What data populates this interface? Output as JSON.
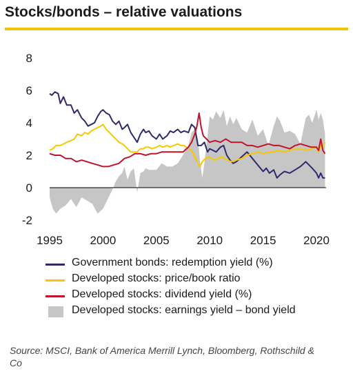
{
  "title": "Stocks/bonds – relative valuations",
  "source": "Source: MSCI, Bank of America Merrill Lynch, Bloomberg, Rothschild & Co",
  "colors": {
    "accent_rule": "#f5c400",
    "gov_bonds": "#2b2a6b",
    "price_book": "#f7c700",
    "dividend_yield": "#c0122c",
    "earnings_gap": "#c6c6c6",
    "zero_line": "#000000"
  },
  "chart_data": {
    "type": "line",
    "title": "Stocks/bonds – relative valuations",
    "xlabel": "",
    "ylabel": "",
    "xlim": [
      1995,
      2020.9
    ],
    "ylim": [
      -2,
      8
    ],
    "x_ticks": [
      "1995",
      "2000",
      "2005",
      "2010",
      "2015",
      "2020"
    ],
    "x_tick_values": [
      1995,
      2000,
      2005,
      2010,
      2015,
      2020
    ],
    "y_ticks": [
      "-2",
      "0",
      "2",
      "4",
      "6",
      "8"
    ],
    "y_tick_values": [
      -2,
      0,
      2,
      4,
      6,
      8
    ],
    "grid": false,
    "legend_position": "bottom",
    "series": [
      {
        "name": "Developed stocks: earnings yield – bond yield",
        "kind": "area",
        "color": "#c6c6c6",
        "x": [
          1995.0,
          1995.3,
          1995.6,
          1996.0,
          1996.5,
          1997.0,
          1997.5,
          1998.0,
          1998.5,
          1999.0,
          1999.5,
          2000.0,
          2000.3,
          2000.6,
          2000.9,
          2001.2,
          2001.5,
          2001.8,
          2002.0,
          2002.3,
          2002.6,
          2002.9,
          2003.2,
          2003.5,
          2003.8,
          2004.0,
          2004.3,
          2004.7,
          2005.0,
          2005.5,
          2006.0,
          2006.5,
          2007.0,
          2007.5,
          2008.0,
          2008.3,
          2008.6,
          2008.9,
          2009.1,
          2009.3,
          2009.5,
          2009.8,
          2010.0,
          2010.3,
          2010.6,
          2011.0,
          2011.3,
          2011.6,
          2011.9,
          2012.2,
          2012.5,
          2013.0,
          2013.5,
          2014.0,
          2014.5,
          2015.0,
          2015.5,
          2016.0,
          2016.3,
          2016.6,
          2017.0,
          2017.5,
          2018.0,
          2018.5,
          2019.0,
          2019.3,
          2019.6,
          2020.0,
          2020.2,
          2020.4,
          2020.6,
          2020.8
        ],
        "values": [
          -0.6,
          -1.3,
          -1.6,
          -1.3,
          -1.1,
          -0.7,
          -1.2,
          -0.6,
          -0.8,
          -1.0,
          -1.6,
          -1.3,
          -0.9,
          -0.5,
          -0.1,
          0.4,
          0.7,
          0.9,
          1.3,
          0.5,
          1.0,
          1.2,
          -0.3,
          0.9,
          1.0,
          1.2,
          1.1,
          1.1,
          1.1,
          1.5,
          1.3,
          1.3,
          1.5,
          2.0,
          2.6,
          3.4,
          3.6,
          3.0,
          1.6,
          0.6,
          1.5,
          3.2,
          4.4,
          4.2,
          4.7,
          4.3,
          4.8,
          3.8,
          4.4,
          3.9,
          4.3,
          3.6,
          3.4,
          4.2,
          3.2,
          3.6,
          2.6,
          3.8,
          4.4,
          4.1,
          3.4,
          3.5,
          3.3,
          2.7,
          4.3,
          4.5,
          4.0,
          4.8,
          4.2,
          4.6,
          4.2,
          3.3
        ]
      },
      {
        "name": "Government bonds: redemption yield (%)",
        "kind": "line",
        "color": "#2b2a6b",
        "x": [
          1995.0,
          1995.2,
          1995.5,
          1995.8,
          1996.0,
          1996.3,
          1996.6,
          1997.0,
          1997.3,
          1997.6,
          1998.0,
          1998.3,
          1998.6,
          1998.9,
          1999.2,
          1999.5,
          1999.8,
          2000.0,
          2000.3,
          2000.6,
          2000.9,
          2001.2,
          2001.5,
          2001.8,
          2002.0,
          2002.3,
          2002.6,
          2002.9,
          2003.2,
          2003.5,
          2003.8,
          2004.0,
          2004.3,
          2004.6,
          2005.0,
          2005.3,
          2005.6,
          2006.0,
          2006.3,
          2006.6,
          2007.0,
          2007.3,
          2007.6,
          2008.0,
          2008.3,
          2008.6,
          2008.9,
          2009.2,
          2009.5,
          2009.8,
          2010.0,
          2010.3,
          2010.6,
          2011.0,
          2011.3,
          2011.6,
          2011.9,
          2012.2,
          2012.5,
          2013.0,
          2013.5,
          2014.0,
          2014.5,
          2015.0,
          2015.3,
          2015.6,
          2016.0,
          2016.3,
          2016.6,
          2017.0,
          2017.5,
          2018.0,
          2018.5,
          2019.0,
          2019.3,
          2019.6,
          2020.0,
          2020.2,
          2020.4,
          2020.6,
          2020.8
        ],
        "values": [
          5.8,
          5.7,
          5.9,
          5.8,
          5.2,
          5.6,
          5.1,
          5.1,
          4.6,
          4.8,
          4.3,
          4.1,
          3.8,
          3.9,
          4.0,
          4.4,
          4.7,
          4.8,
          4.6,
          4.5,
          4.1,
          3.9,
          4.1,
          3.6,
          3.7,
          3.9,
          3.4,
          3.1,
          2.8,
          3.3,
          3.6,
          3.4,
          3.5,
          3.2,
          3.0,
          3.3,
          3.0,
          3.2,
          3.5,
          3.4,
          3.6,
          3.4,
          3.5,
          3.4,
          3.9,
          3.7,
          2.6,
          2.6,
          2.8,
          2.2,
          2.4,
          2.3,
          2.2,
          2.5,
          2.6,
          2.0,
          1.7,
          1.5,
          1.6,
          1.9,
          2.2,
          1.8,
          1.4,
          1.0,
          1.2,
          0.9,
          1.1,
          0.6,
          0.8,
          1.0,
          0.9,
          1.1,
          1.3,
          1.6,
          1.4,
          1.2,
          0.9,
          0.6,
          0.9,
          0.6,
          0.6
        ]
      },
      {
        "name": "Developed stocks: price/book ratio",
        "kind": "line",
        "color": "#f7c700",
        "x": [
          1995.0,
          1995.3,
          1995.6,
          1996.0,
          1996.3,
          1996.6,
          1997.0,
          1997.3,
          1997.6,
          1998.0,
          1998.3,
          1998.6,
          1998.9,
          1999.2,
          1999.5,
          1999.8,
          2000.0,
          2000.3,
          2000.6,
          2000.9,
          2001.2,
          2001.5,
          2001.8,
          2002.0,
          2002.3,
          2002.6,
          2002.9,
          2003.2,
          2003.5,
          2003.8,
          2004.0,
          2004.3,
          2004.6,
          2005.0,
          2005.3,
          2005.6,
          2006.0,
          2006.3,
          2006.6,
          2007.0,
          2007.3,
          2007.6,
          2008.0,
          2008.3,
          2008.6,
          2008.9,
          2009.1,
          2009.3,
          2009.6,
          2009.9,
          2010.2,
          2010.5,
          2010.8,
          2011.1,
          2011.4,
          2011.7,
          2012.0,
          2012.5,
          2013.0,
          2013.5,
          2014.0,
          2014.5,
          2015.0,
          2015.5,
          2016.0,
          2016.5,
          2017.0,
          2017.5,
          2018.0,
          2018.5,
          2019.0,
          2019.5,
          2020.0,
          2020.2,
          2020.4,
          2020.6,
          2020.8
        ],
        "values": [
          2.3,
          2.4,
          2.6,
          2.6,
          2.7,
          2.8,
          2.9,
          3.0,
          3.3,
          3.2,
          3.4,
          3.3,
          3.5,
          3.6,
          3.7,
          3.8,
          3.9,
          3.6,
          3.4,
          3.2,
          3.0,
          2.8,
          2.7,
          2.6,
          2.4,
          2.2,
          2.2,
          2.2,
          2.4,
          2.4,
          2.5,
          2.5,
          2.4,
          2.5,
          2.6,
          2.5,
          2.6,
          2.5,
          2.6,
          2.7,
          2.6,
          2.6,
          2.4,
          2.3,
          1.9,
          1.5,
          1.3,
          1.6,
          1.8,
          1.9,
          1.8,
          1.7,
          1.8,
          1.9,
          1.8,
          1.7,
          1.6,
          1.7,
          1.8,
          2.0,
          2.1,
          2.2,
          2.1,
          2.2,
          2.2,
          2.3,
          2.2,
          2.3,
          2.4,
          2.4,
          2.3,
          2.4,
          2.5,
          2.2,
          2.6,
          2.5,
          2.8
        ]
      },
      {
        "name": "Developed stocks: dividend yield (%)",
        "kind": "line",
        "color": "#c0122c",
        "x": [
          1995.0,
          1995.5,
          1996.0,
          1996.5,
          1997.0,
          1997.5,
          1998.0,
          1998.5,
          1999.0,
          1999.5,
          2000.0,
          2000.5,
          2001.0,
          2001.5,
          2002.0,
          2002.5,
          2003.0,
          2003.5,
          2004.0,
          2004.5,
          2005.0,
          2005.5,
          2006.0,
          2006.5,
          2007.0,
          2007.5,
          2008.0,
          2008.3,
          2008.6,
          2008.8,
          2009.0,
          2009.2,
          2009.4,
          2009.7,
          2010.0,
          2010.5,
          2011.0,
          2011.5,
          2012.0,
          2012.5,
          2013.0,
          2013.5,
          2014.0,
          2014.5,
          2015.0,
          2015.5,
          2016.0,
          2016.5,
          2017.0,
          2017.5,
          2018.0,
          2018.5,
          2019.0,
          2019.5,
          2020.0,
          2020.2,
          2020.4,
          2020.6,
          2020.8
        ],
        "values": [
          2.1,
          2.0,
          2.0,
          1.8,
          1.8,
          1.6,
          1.7,
          1.6,
          1.5,
          1.4,
          1.3,
          1.3,
          1.4,
          1.5,
          1.8,
          1.9,
          2.1,
          2.1,
          2.0,
          2.1,
          2.1,
          2.2,
          2.2,
          2.2,
          2.2,
          2.2,
          2.5,
          2.8,
          3.3,
          3.8,
          4.6,
          3.7,
          3.2,
          3.0,
          2.8,
          2.9,
          2.8,
          3.0,
          2.8,
          2.8,
          2.8,
          2.6,
          2.6,
          2.5,
          2.6,
          2.7,
          2.6,
          2.6,
          2.5,
          2.4,
          2.6,
          2.7,
          2.6,
          2.5,
          2.5,
          2.3,
          3.0,
          2.3,
          2.1
        ]
      }
    ]
  }
}
